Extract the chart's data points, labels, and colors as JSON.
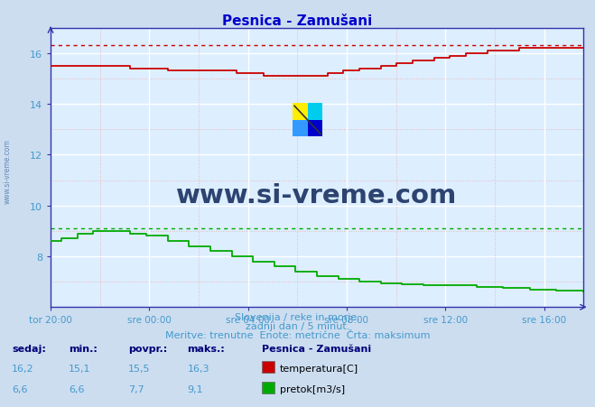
{
  "title": "Pesnica - Zamušani",
  "bg_color": "#ccddf0",
  "plot_bg_color": "#ddeeff",
  "grid_white": "#ffffff",
  "grid_pink": "#e8b8b8",
  "title_color": "#0000cc",
  "axis_color": "#3333aa",
  "x_tick_labels": [
    "tor 20:00",
    "sre 00:00",
    "sre 04:00",
    "sre 08:00",
    "sre 12:00",
    "sre 16:00"
  ],
  "x_tick_positions": [
    0,
    240,
    480,
    720,
    960,
    1200
  ],
  "total_minutes": 1295,
  "y_min": 6.0,
  "y_max": 17.0,
  "y_ticks": [
    8,
    10,
    12,
    14,
    16
  ],
  "temp_color": "#cc0000",
  "flow_color": "#00aa00",
  "temp_max": 16.3,
  "flow_max": 9.1,
  "subtitle1": "Slovenija / reke in morje.",
  "subtitle2": "zadnji dan / 5 minut.",
  "subtitle3": "Meritve: trenutne  Enote: metrične  Črta: maksimum",
  "subtitle_color": "#4499cc",
  "legend_title": "Pesnica - Zamušani",
  "label_temp": "temperatura[C]",
  "label_flow": "pretok[m3/s]",
  "stats_labels": [
    "sedaj:",
    "min.:",
    "povpr.:",
    "maks.:"
  ],
  "temp_stats": [
    "16,2",
    "15,1",
    "15,5",
    "16,3"
  ],
  "flow_stats": [
    "6,6",
    "6,6",
    "7,7",
    "9,1"
  ],
  "watermark": "www.si-vreme.com",
  "watermark_color": "#1a3060",
  "left_label": "www.si-vreme.com",
  "temp_data_fracs": [
    0.0,
    0.02,
    0.05,
    0.1,
    0.15,
    0.2,
    0.22,
    0.3,
    0.35,
    0.4,
    0.45,
    0.5,
    0.52,
    0.55,
    0.58,
    0.62,
    0.65,
    0.68,
    0.72,
    0.75,
    0.78,
    0.82,
    0.85,
    0.88,
    0.92,
    0.95,
    1.0
  ],
  "temp_data_vals": [
    15.5,
    15.5,
    15.5,
    15.5,
    15.4,
    15.4,
    15.3,
    15.3,
    15.2,
    15.1,
    15.1,
    15.1,
    15.2,
    15.3,
    15.4,
    15.5,
    15.6,
    15.7,
    15.8,
    15.9,
    16.0,
    16.1,
    16.1,
    16.2,
    16.2,
    16.2,
    16.2
  ],
  "flow_data_fracs": [
    0.0,
    0.02,
    0.05,
    0.08,
    0.12,
    0.15,
    0.18,
    0.22,
    0.26,
    0.3,
    0.34,
    0.38,
    0.42,
    0.46,
    0.5,
    0.54,
    0.58,
    0.62,
    0.66,
    0.7,
    0.75,
    0.8,
    0.85,
    0.9,
    0.95,
    1.0
  ],
  "flow_data_vals": [
    8.6,
    8.7,
    8.9,
    9.0,
    9.0,
    8.9,
    8.8,
    8.6,
    8.4,
    8.2,
    8.0,
    7.8,
    7.6,
    7.4,
    7.2,
    7.1,
    7.0,
    6.95,
    6.9,
    6.85,
    6.85,
    6.8,
    6.75,
    6.7,
    6.65,
    6.6
  ]
}
